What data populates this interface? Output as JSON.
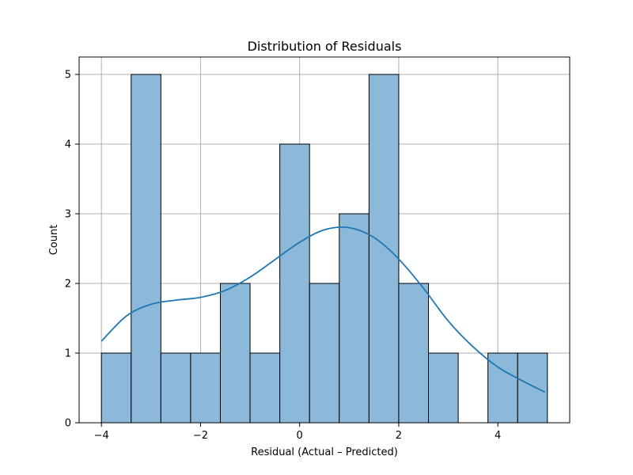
{
  "chart_data": {
    "type": "bar",
    "subtype": "histogram-with-kde",
    "title": "Distribution of Residuals",
    "xlabel": "Residual (Actual – Predicted)",
    "ylabel": "Count",
    "xlim": [
      -4.45,
      5.45
    ],
    "ylim": [
      0,
      5.25
    ],
    "grid": true,
    "x_ticks": [
      -4,
      -2,
      0,
      2,
      4
    ],
    "x_tick_labels": [
      "−4",
      "−2",
      "0",
      "2",
      "4"
    ],
    "y_ticks": [
      0,
      1,
      2,
      3,
      4,
      5
    ],
    "y_tick_labels": [
      "0",
      "1",
      "2",
      "3",
      "4",
      "5"
    ],
    "bins": {
      "start": -4.0,
      "width": 0.6,
      "counts": [
        1,
        5,
        1,
        1,
        2,
        1,
        4,
        2,
        3,
        5,
        2,
        1,
        0,
        1,
        1
      ]
    },
    "bar_color": "#8cb8d9",
    "bar_edge_color": "#000000",
    "kde": {
      "color": "#1f77b4",
      "x": [
        -4.0,
        -3.5,
        -3.0,
        -2.5,
        -2.0,
        -1.5,
        -1.0,
        -0.5,
        0.0,
        0.5,
        1.0,
        1.5,
        2.0,
        2.5,
        3.0,
        3.5,
        4.0,
        4.5,
        4.95
      ],
      "y": [
        1.17,
        1.53,
        1.7,
        1.76,
        1.8,
        1.9,
        2.09,
        2.34,
        2.59,
        2.77,
        2.8,
        2.66,
        2.35,
        1.93,
        1.46,
        1.09,
        0.8,
        0.6,
        0.44
      ]
    }
  }
}
